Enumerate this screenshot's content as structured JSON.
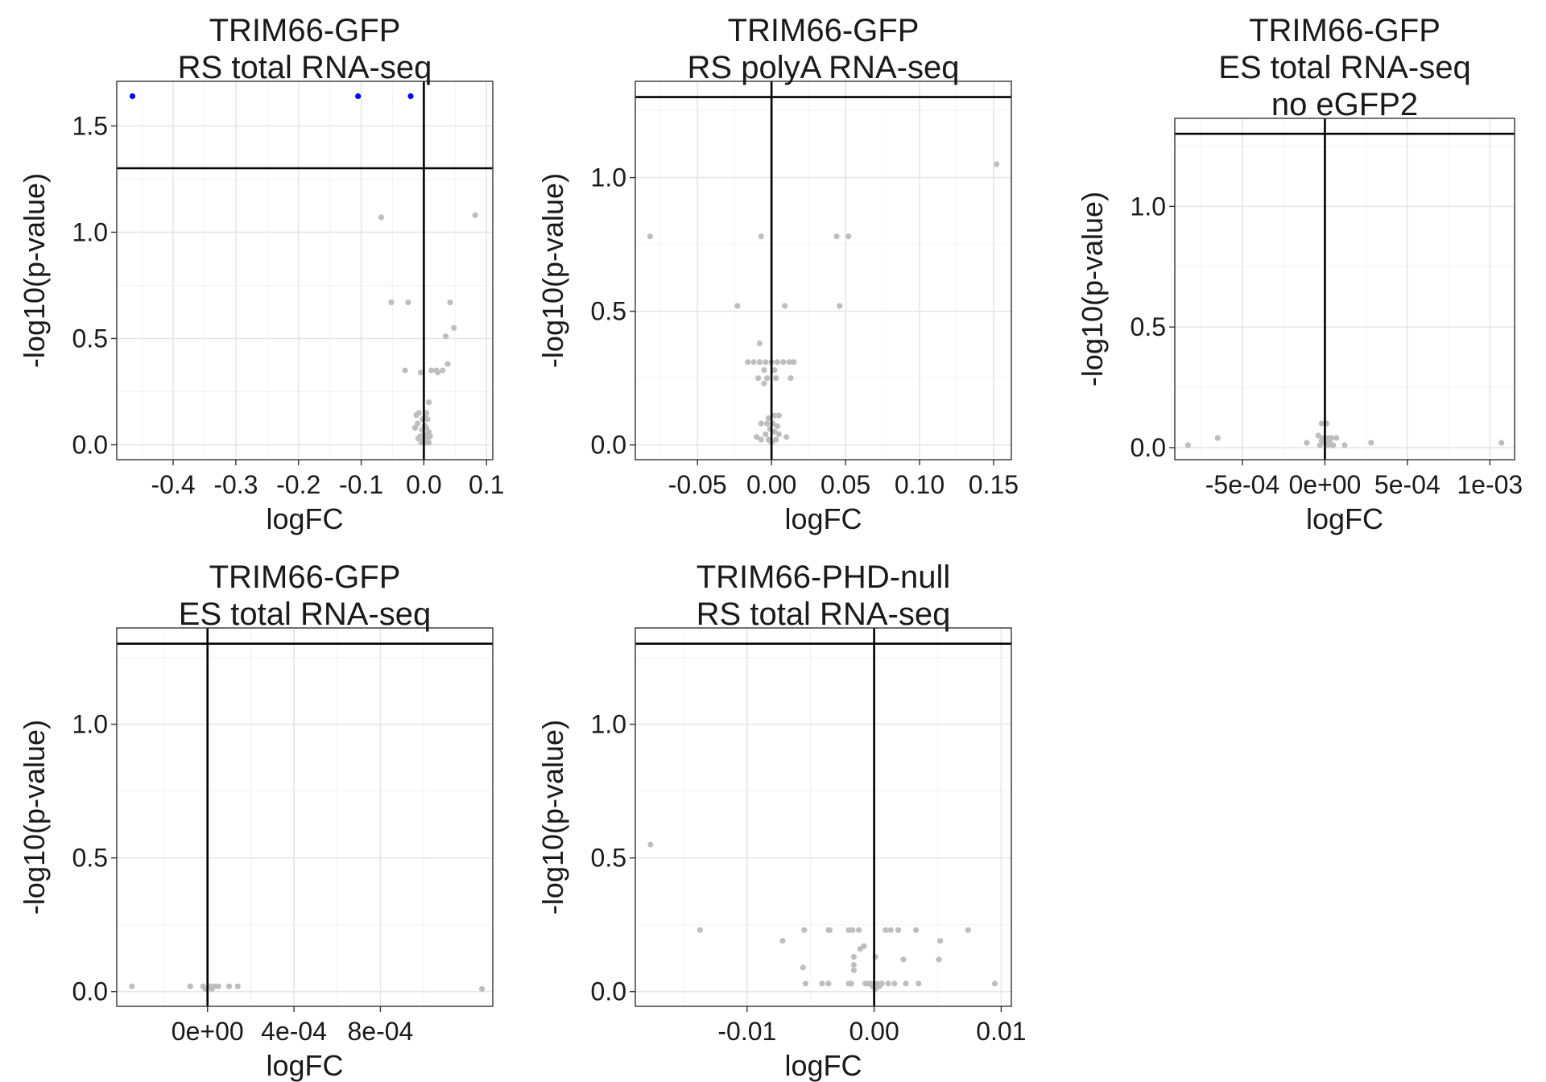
{
  "colors": {
    "nonsig": "#bebebe",
    "sig": "#0000ff",
    "line": "#000000",
    "grid": "#e6e6e6"
  },
  "chart_data": [
    {
      "type": "scatter",
      "title": [
        "TRIM66-GFP",
        "RS total RNA-seq"
      ],
      "xlabel": "logFC",
      "ylabel": "-log10(p-value)",
      "xlim": [
        -0.49,
        0.11
      ],
      "ylim": [
        -0.07,
        1.71
      ],
      "xticks": [
        -0.4,
        -0.3,
        -0.2,
        -0.1,
        0.0,
        0.1
      ],
      "xtick_labels": [
        "-0.4",
        "-0.3",
        "-0.2",
        "-0.1",
        "0.0",
        "0.1"
      ],
      "yticks": [
        0.0,
        0.5,
        1.0,
        1.5
      ],
      "ytick_labels": [
        "0.0",
        "0.5",
        "1.0",
        "1.5"
      ],
      "hline": 1.301,
      "vline": 0,
      "significant": [
        [
          -0.465,
          1.64
        ],
        [
          -0.105,
          1.64
        ],
        [
          -0.021,
          1.64
        ]
      ],
      "points": [
        [
          -0.068,
          1.07
        ],
        [
          0.082,
          1.08
        ],
        [
          -0.052,
          0.67
        ],
        [
          -0.025,
          0.67
        ],
        [
          0.042,
          0.67
        ],
        [
          0.048,
          0.55
        ],
        [
          0.035,
          0.51
        ],
        [
          0.038,
          0.38
        ],
        [
          0.03,
          0.35
        ],
        [
          -0.03,
          0.35
        ],
        [
          -0.005,
          0.34
        ],
        [
          0.012,
          0.35
        ],
        [
          0.02,
          0.35
        ],
        [
          0.022,
          0.34
        ],
        [
          0.008,
          0.2
        ],
        [
          0.004,
          0.15
        ],
        [
          -0.008,
          0.15
        ],
        [
          -0.012,
          0.14
        ],
        [
          0.002,
          0.13
        ],
        [
          -0.002,
          0.12
        ],
        [
          0.006,
          0.12
        ],
        [
          -0.01,
          0.1
        ],
        [
          0.001,
          0.09
        ],
        [
          0.004,
          0.08
        ],
        [
          -0.014,
          0.08
        ],
        [
          -0.003,
          0.07
        ],
        [
          0.008,
          0.06
        ],
        [
          0.001,
          0.05
        ],
        [
          -0.006,
          0.04
        ],
        [
          0.004,
          0.04
        ],
        [
          0.01,
          0.04
        ],
        [
          -0.009,
          0.03
        ],
        [
          0.002,
          0.03
        ],
        [
          0.006,
          0.02
        ],
        [
          -0.001,
          0.02
        ],
        [
          0.003,
          0.01
        ],
        [
          -0.004,
          0.01
        ],
        [
          0.008,
          0.01
        ]
      ]
    },
    {
      "type": "scatter",
      "title": [
        "TRIM66-GFP",
        "RS polyA RNA-seq"
      ],
      "xlabel": "logFC",
      "ylabel": "-log10(p-value)",
      "xlim": [
        -0.092,
        0.162
      ],
      "ylim": [
        -0.055,
        1.36
      ],
      "xticks": [
        -0.05,
        0.0,
        0.05,
        0.1,
        0.15
      ],
      "xtick_labels": [
        "-0.05",
        "0.00",
        "0.05",
        "0.10",
        "0.15"
      ],
      "yticks": [
        0.0,
        0.5,
        1.0
      ],
      "ytick_labels": [
        "0.0",
        "0.5",
        "1.0"
      ],
      "hline": 1.301,
      "vline": 0,
      "significant": [],
      "points": [
        [
          0.152,
          1.05
        ],
        [
          -0.082,
          0.78
        ],
        [
          -0.007,
          0.78
        ],
        [
          0.044,
          0.78
        ],
        [
          0.052,
          0.78
        ],
        [
          -0.023,
          0.52
        ],
        [
          0.009,
          0.52
        ],
        [
          0.046,
          0.52
        ],
        [
          -0.008,
          0.38
        ],
        [
          -0.016,
          0.31
        ],
        [
          -0.012,
          0.31
        ],
        [
          -0.008,
          0.31
        ],
        [
          -0.004,
          0.31
        ],
        [
          0.0,
          0.31
        ],
        [
          0.004,
          0.31
        ],
        [
          0.008,
          0.31
        ],
        [
          0.012,
          0.31
        ],
        [
          0.015,
          0.31
        ],
        [
          -0.005,
          0.28
        ],
        [
          0.002,
          0.28
        ],
        [
          -0.009,
          0.25
        ],
        [
          -0.003,
          0.25
        ],
        [
          0.003,
          0.25
        ],
        [
          0.013,
          0.25
        ],
        [
          -0.005,
          0.23
        ],
        [
          0.002,
          0.11
        ],
        [
          0.005,
          0.11
        ],
        [
          -0.002,
          0.1
        ],
        [
          -0.007,
          0.08
        ],
        [
          -0.003,
          0.08
        ],
        [
          0.001,
          0.08
        ],
        [
          0.004,
          0.07
        ],
        [
          -0.001,
          0.06
        ],
        [
          0.002,
          0.05
        ],
        [
          -0.004,
          0.04
        ],
        [
          0.005,
          0.04
        ],
        [
          -0.01,
          0.03
        ],
        [
          0.01,
          0.03
        ],
        [
          -0.002,
          0.02
        ],
        [
          0.003,
          0.02
        ],
        [
          -0.007,
          0.02
        ],
        [
          0.0,
          0.01
        ]
      ]
    },
    {
      "type": "scatter",
      "title": [
        "TRIM66-GFP",
        "ES total RNA-seq",
        "no eGFP2"
      ],
      "xlabel": "logFC",
      "ylabel": "-log10(p-value)",
      "xlim": [
        -0.00091,
        0.00115
      ],
      "ylim": [
        -0.05,
        1.365
      ],
      "xticks": [
        -0.0005,
        0.0,
        0.0005,
        0.001
      ],
      "xtick_labels": [
        "-5e-04",
        "0e+00",
        "5e-04",
        "1e-03"
      ],
      "yticks": [
        0.0,
        0.5,
        1.0
      ],
      "ytick_labels": [
        "0.0",
        "0.5",
        "1.0"
      ],
      "hline": 1.301,
      "vline": 0,
      "significant": [],
      "points": [
        [
          -0.00083,
          0.01
        ],
        [
          -0.00065,
          0.04
        ],
        [
          -0.00011,
          0.02
        ],
        [
          -2e-05,
          0.1
        ],
        [
          1e-05,
          0.1
        ],
        [
          -4e-05,
          0.05
        ],
        [
          -1e-05,
          0.04
        ],
        [
          2e-05,
          0.04
        ],
        [
          4e-05,
          0.04
        ],
        [
          7e-05,
          0.04
        ],
        [
          -2e-05,
          0.03
        ],
        [
          1e-05,
          0.03
        ],
        [
          3e-05,
          0.02
        ],
        [
          0.0,
          0.02
        ],
        [
          -3e-05,
          0.01
        ],
        [
          2e-05,
          0.01
        ],
        [
          5e-05,
          0.01
        ],
        [
          0.00012,
          0.01
        ],
        [
          0.00028,
          0.02
        ],
        [
          0.00107,
          0.02
        ]
      ]
    },
    {
      "type": "scatter",
      "title": [
        "TRIM66-GFP",
        "ES total RNA-seq"
      ],
      "xlabel": "logFC",
      "ylabel": "-log10(p-value)",
      "xlim": [
        -0.00042,
        0.00132
      ],
      "ylim": [
        -0.055,
        1.36
      ],
      "xticks": [
        0.0,
        0.0004,
        0.0008
      ],
      "xtick_labels": [
        "0e+00",
        "4e-04",
        "8e-04"
      ],
      "yticks": [
        0.0,
        0.5,
        1.0
      ],
      "ytick_labels": [
        "0.0",
        "0.5",
        "1.0"
      ],
      "hline": 1.301,
      "vline": 0,
      "significant": [],
      "points": [
        [
          -0.00035,
          0.02
        ],
        [
          -8e-05,
          0.02
        ],
        [
          -2e-05,
          0.02
        ],
        [
          1e-05,
          0.02
        ],
        [
          3e-05,
          0.02
        ],
        [
          5e-05,
          0.02
        ],
        [
          0.0001,
          0.02
        ],
        [
          0.00014,
          0.02
        ],
        [
          -1e-05,
          0.01
        ],
        [
          2e-05,
          0.01
        ],
        [
          0.00127,
          0.01
        ]
      ]
    },
    {
      "type": "scatter",
      "title": [
        "TRIM66-PHD-null",
        "RS total RNA-seq"
      ],
      "xlabel": "logFC",
      "ylabel": "-log10(p-value)",
      "xlim": [
        -0.0188,
        0.0108
      ],
      "ylim": [
        -0.055,
        1.36
      ],
      "xticks": [
        -0.01,
        0.0,
        0.01
      ],
      "xtick_labels": [
        "-0.01",
        "0.00",
        "0.01"
      ],
      "yticks": [
        0.0,
        0.5,
        1.0
      ],
      "ytick_labels": [
        "0.0",
        "0.5",
        "1.0"
      ],
      "hline": 1.301,
      "vline": 0,
      "significant": [],
      "points": [
        [
          -0.0176,
          0.55
        ],
        [
          -0.0137,
          0.23
        ],
        [
          -0.0072,
          0.19
        ],
        [
          -0.0055,
          0.23
        ],
        [
          -0.0036,
          0.23
        ],
        [
          -0.0035,
          0.23
        ],
        [
          -0.002,
          0.23
        ],
        [
          -0.0017,
          0.23
        ],
        [
          -0.0012,
          0.23
        ],
        [
          0.0009,
          0.23
        ],
        [
          0.0013,
          0.23
        ],
        [
          0.0019,
          0.23
        ],
        [
          0.0033,
          0.23
        ],
        [
          0.0074,
          0.23
        ],
        [
          0.0052,
          0.19
        ],
        [
          -0.0008,
          0.17
        ],
        [
          -0.0011,
          0.16
        ],
        [
          -0.0016,
          0.13
        ],
        [
          0.0001,
          0.13
        ],
        [
          0.0051,
          0.12
        ],
        [
          -0.0016,
          0.1
        ],
        [
          0.0023,
          0.12
        ],
        [
          -0.0056,
          0.09
        ],
        [
          -0.0016,
          0.08
        ],
        [
          -0.0054,
          0.03
        ],
        [
          -0.0041,
          0.03
        ],
        [
          -0.0036,
          0.03
        ],
        [
          -0.002,
          0.03
        ],
        [
          -0.0018,
          0.03
        ],
        [
          -0.0007,
          0.03
        ],
        [
          -0.0005,
          0.03
        ],
        [
          -0.0003,
          0.03
        ],
        [
          0.0,
          0.03
        ],
        [
          0.0003,
          0.03
        ],
        [
          0.0006,
          0.03
        ],
        [
          0.0011,
          0.03
        ],
        [
          0.0016,
          0.03
        ],
        [
          0.0025,
          0.03
        ],
        [
          0.0035,
          0.03
        ],
        [
          0.0095,
          0.03
        ],
        [
          -0.0001,
          0.02
        ],
        [
          0.0004,
          0.02
        ],
        [
          0.0001,
          0.01
        ]
      ]
    }
  ]
}
